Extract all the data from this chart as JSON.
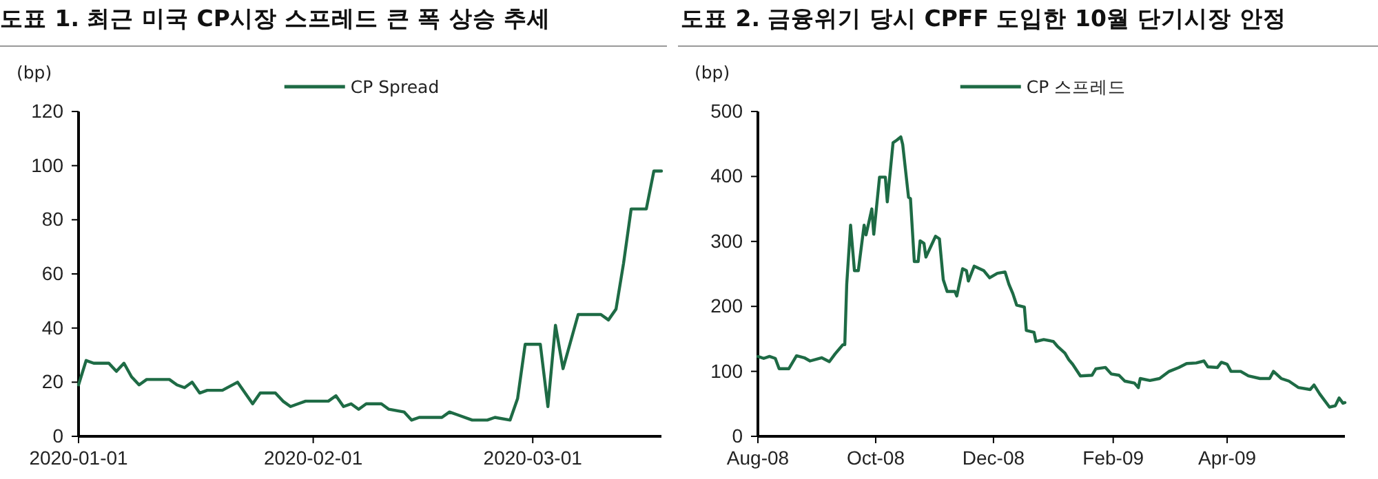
{
  "chart_data": [
    {
      "type": "line",
      "title": "도표 1. 최근 미국 CP시장 스프레드 큰 폭 상승 추세",
      "ylabel": "(bp)",
      "legend": "top",
      "grid": false,
      "marker": "none",
      "line_style": "solid",
      "xlim": [
        "2020-01-01",
        "2020-03-18"
      ],
      "xticks": [
        {
          "value": "2020-01-01",
          "label": "2020-01-01"
        },
        {
          "value": "2020-02-01",
          "label": "2020-02-01"
        },
        {
          "value": "2020-03-01",
          "label": "2020-03-01"
        }
      ],
      "ylim": [
        0,
        120
      ],
      "yticks": [
        0,
        20,
        40,
        60,
        80,
        100,
        120
      ],
      "series": [
        {
          "name": "CP Spread",
          "color": "#1e6b45",
          "x": [
            "2020-01-01",
            "2020-01-02",
            "2020-01-03",
            "2020-01-05",
            "2020-01-06",
            "2020-01-07",
            "2020-01-08",
            "2020-01-09",
            "2020-01-10",
            "2020-01-13",
            "2020-01-14",
            "2020-01-15",
            "2020-01-16",
            "2020-01-17",
            "2020-01-18",
            "2020-01-20",
            "2020-01-22",
            "2020-01-24",
            "2020-01-25",
            "2020-01-27",
            "2020-01-28",
            "2020-01-29",
            "2020-01-30",
            "2020-01-31",
            "2020-02-03",
            "2020-02-04",
            "2020-02-05",
            "2020-02-06",
            "2020-02-07",
            "2020-02-08",
            "2020-02-10",
            "2020-02-11",
            "2020-02-13",
            "2020-02-14",
            "2020-02-15",
            "2020-02-18",
            "2020-02-19",
            "2020-02-20",
            "2020-02-22",
            "2020-02-24",
            "2020-02-25",
            "2020-02-27",
            "2020-02-28",
            "2020-02-29",
            "2020-03-02",
            "2020-03-03",
            "2020-03-04",
            "2020-03-05",
            "2020-03-07",
            "2020-03-10",
            "2020-03-11",
            "2020-03-12",
            "2020-03-13",
            "2020-03-14",
            "2020-03-16",
            "2020-03-17",
            "2020-03-18"
          ],
          "values": [
            19,
            28,
            27,
            27,
            24,
            27,
            22,
            19,
            21,
            21,
            19,
            18,
            20,
            16,
            17,
            17,
            20,
            12,
            16,
            16,
            13,
            11,
            12,
            13,
            13,
            15,
            11,
            12,
            10,
            12,
            12,
            10,
            9,
            6,
            7,
            7,
            9,
            8,
            6,
            6,
            7,
            6,
            14,
            34,
            34,
            11,
            41,
            25,
            45,
            45,
            43,
            47,
            64,
            84,
            84,
            98,
            98
          ]
        }
      ]
    },
    {
      "type": "line",
      "title": "도표 2. 금융위기 당시 CPFF 도입한 10월 단기시장 안정",
      "ylabel": "(bp)",
      "legend": "top",
      "grid": false,
      "marker": "none",
      "line_style": "solid",
      "xlim": [
        "2008-08-01",
        "2009-06-01"
      ],
      "xticks": [
        {
          "value": "2008-08-01",
          "label": "Aug-08"
        },
        {
          "value": "2008-10-01",
          "label": "Oct-08"
        },
        {
          "value": "2008-12-01",
          "label": "Dec-08"
        },
        {
          "value": "2009-02-01",
          "label": "Feb-09"
        },
        {
          "value": "2009-04-01",
          "label": "Apr-09"
        }
      ],
      "ylim": [
        0,
        500
      ],
      "yticks": [
        0,
        100,
        200,
        300,
        400,
        500
      ],
      "series": [
        {
          "name": "CP 스프레드",
          "color": "#1e6b45",
          "x": [
            "2008-08-01",
            "2008-08-04",
            "2008-08-07",
            "2008-08-10",
            "2008-08-12",
            "2008-08-17",
            "2008-08-21",
            "2008-08-25",
            "2008-08-28",
            "2008-09-03",
            "2008-09-07",
            "2008-09-10",
            "2008-09-14",
            "2008-09-15",
            "2008-09-16",
            "2008-09-18",
            "2008-09-20",
            "2008-09-22",
            "2008-09-25",
            "2008-09-26",
            "2008-09-29",
            "2008-09-30",
            "2008-10-03",
            "2008-10-06",
            "2008-10-07",
            "2008-10-10",
            "2008-10-12",
            "2008-10-14",
            "2008-10-15",
            "2008-10-18",
            "2008-10-19",
            "2008-10-21",
            "2008-10-23",
            "2008-10-24",
            "2008-10-26",
            "2008-10-27",
            "2008-11-01",
            "2008-11-03",
            "2008-11-05",
            "2008-11-07",
            "2008-11-11",
            "2008-11-12",
            "2008-11-15",
            "2008-11-17",
            "2008-11-18",
            "2008-11-21",
            "2008-11-26",
            "2008-11-29",
            "2008-12-03",
            "2008-12-07",
            "2008-12-09",
            "2008-12-11",
            "2008-12-13",
            "2008-12-17",
            "2008-12-18",
            "2008-12-22",
            "2008-12-23",
            "2008-12-27",
            "2009-01-01",
            "2009-01-03",
            "2009-01-07",
            "2009-01-09",
            "2009-01-11",
            "2009-01-15",
            "2009-01-21",
            "2009-01-23",
            "2009-01-28",
            "2009-01-31",
            "2009-02-04",
            "2009-02-07",
            "2009-02-12",
            "2009-02-14",
            "2009-02-15",
            "2009-02-20",
            "2009-02-25",
            "2009-03-02",
            "2009-03-07",
            "2009-03-11",
            "2009-03-16",
            "2009-03-20",
            "2009-03-22",
            "2009-03-27",
            "2009-03-29",
            "2009-04-01",
            "2009-04-03",
            "2009-04-08",
            "2009-04-12",
            "2009-04-18",
            "2009-04-23",
            "2009-04-25",
            "2009-04-29",
            "2009-05-03",
            "2009-05-08",
            "2009-05-14",
            "2009-05-16",
            "2009-05-19",
            "2009-05-24",
            "2009-05-27",
            "2009-05-29",
            "2009-05-31",
            "2009-06-01"
          ],
          "values": [
            123,
            120,
            123,
            120,
            104,
            104,
            124,
            121,
            116,
            121,
            115,
            127,
            141,
            141,
            234,
            325,
            255,
            255,
            325,
            310,
            350,
            311,
            399,
            399,
            361,
            452,
            456,
            461,
            449,
            368,
            366,
            269,
            269,
            301,
            297,
            276,
            308,
            304,
            241,
            223,
            223,
            216,
            258,
            255,
            239,
            262,
            255,
            244,
            251,
            253,
            234,
            220,
            202,
            199,
            163,
            160,
            146,
            149,
            146,
            139,
            128,
            118,
            111,
            93,
            94,
            104,
            106,
            96,
            94,
            85,
            82,
            75,
            89,
            86,
            89,
            100,
            106,
            112,
            113,
            116,
            107,
            106,
            114,
            111,
            100,
            100,
            93,
            89,
            89,
            100,
            89,
            85,
            75,
            72,
            79,
            65,
            45,
            47,
            59,
            51,
            52
          ]
        }
      ]
    }
  ]
}
